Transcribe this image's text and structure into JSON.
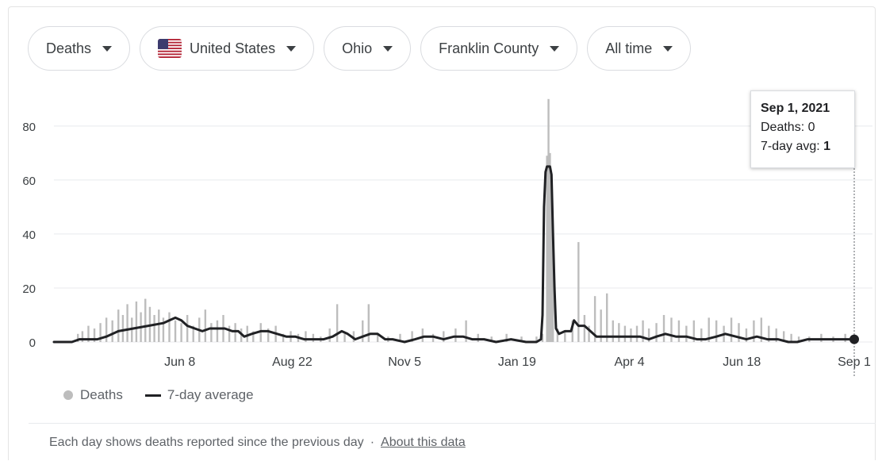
{
  "filters": [
    {
      "label": "Deaths",
      "flag": false
    },
    {
      "label": "United States",
      "flag": true
    },
    {
      "label": "Ohio",
      "flag": false
    },
    {
      "label": "Franklin County",
      "flag": false
    },
    {
      "label": "All time",
      "flag": false
    }
  ],
  "tooltip": {
    "date": "Sep 1, 2021",
    "deaths": "Deaths: 0",
    "avg_prefix": "7-day avg: ",
    "avg_value": "1"
  },
  "legend": {
    "bars": "Deaths",
    "line": "7-day average"
  },
  "footer": {
    "note": "Each day shows deaths reported since the previous day",
    "separator": "·",
    "link": "About this data"
  },
  "colors": {
    "bars": "#bdbdbd",
    "line": "#202124",
    "grid": "#e8eaed",
    "axis_text": "#3c4043",
    "flag_red": "#b22234",
    "flag_blue": "#3c3b6e"
  },
  "chart_data": {
    "type": "bar",
    "ylim": [
      0,
      92
    ],
    "yticks": [
      0,
      20,
      40,
      60,
      80
    ],
    "xlim": [
      "2020-03-16",
      "2021-09-01"
    ],
    "xticks": [
      {
        "date": "2020-06-08",
        "label": "Jun 8"
      },
      {
        "date": "2020-08-22",
        "label": "Aug 22"
      },
      {
        "date": "2020-11-05",
        "label": "Nov 5"
      },
      {
        "date": "2021-01-19",
        "label": "Jan 19"
      },
      {
        "date": "2021-04-04",
        "label": "Apr 4"
      },
      {
        "date": "2021-06-18",
        "label": "Jun 18"
      },
      {
        "date": "2021-09-01",
        "label": "Sep 1"
      }
    ],
    "grid": true,
    "legend_position": "bottom-left",
    "highlight_date": "2021-09-01",
    "series": [
      {
        "name": "Deaths",
        "type": "bar",
        "points": [
          [
            "2020-04-01",
            3
          ],
          [
            "2020-04-04",
            4
          ],
          [
            "2020-04-08",
            6
          ],
          [
            "2020-04-12",
            5
          ],
          [
            "2020-04-16",
            7
          ],
          [
            "2020-04-20",
            9
          ],
          [
            "2020-04-24",
            8
          ],
          [
            "2020-04-28",
            12
          ],
          [
            "2020-05-01",
            10
          ],
          [
            "2020-05-04",
            14
          ],
          [
            "2020-05-07",
            9
          ],
          [
            "2020-05-10",
            15
          ],
          [
            "2020-05-13",
            11
          ],
          [
            "2020-05-16",
            16
          ],
          [
            "2020-05-19",
            13
          ],
          [
            "2020-05-22",
            10
          ],
          [
            "2020-05-25",
            12
          ],
          [
            "2020-05-28",
            9
          ],
          [
            "2020-06-01",
            11
          ],
          [
            "2020-06-05",
            8
          ],
          [
            "2020-06-09",
            7
          ],
          [
            "2020-06-13",
            10
          ],
          [
            "2020-06-17",
            6
          ],
          [
            "2020-06-21",
            9
          ],
          [
            "2020-06-25",
            12
          ],
          [
            "2020-06-29",
            7
          ],
          [
            "2020-07-03",
            8
          ],
          [
            "2020-07-07",
            10
          ],
          [
            "2020-07-11",
            6
          ],
          [
            "2020-07-15",
            7
          ],
          [
            "2020-07-19",
            5
          ],
          [
            "2020-07-23",
            6
          ],
          [
            "2020-07-27",
            4
          ],
          [
            "2020-08-01",
            7
          ],
          [
            "2020-08-06",
            5
          ],
          [
            "2020-08-11",
            6
          ],
          [
            "2020-08-16",
            3
          ],
          [
            "2020-08-21",
            4
          ],
          [
            "2020-08-26",
            3
          ],
          [
            "2020-08-31",
            4
          ],
          [
            "2020-09-05",
            3
          ],
          [
            "2020-09-10",
            2
          ],
          [
            "2020-09-16",
            5
          ],
          [
            "2020-09-21",
            14
          ],
          [
            "2020-09-26",
            3
          ],
          [
            "2020-10-02",
            4
          ],
          [
            "2020-10-08",
            8
          ],
          [
            "2020-10-12",
            14
          ],
          [
            "2020-10-18",
            3
          ],
          [
            "2020-10-25",
            2
          ],
          [
            "2020-11-02",
            3
          ],
          [
            "2020-11-10",
            4
          ],
          [
            "2020-11-17",
            5
          ],
          [
            "2020-11-24",
            3
          ],
          [
            "2020-12-01",
            4
          ],
          [
            "2020-12-09",
            5
          ],
          [
            "2020-12-16",
            8
          ],
          [
            "2020-12-24",
            3
          ],
          [
            "2021-01-02",
            2
          ],
          [
            "2021-01-12",
            3
          ],
          [
            "2021-01-22",
            2
          ],
          [
            "2021-02-01",
            2
          ],
          [
            "2021-02-05",
            3
          ],
          [
            "2021-02-08",
            69
          ],
          [
            "2021-02-09",
            90
          ],
          [
            "2021-02-10",
            70
          ],
          [
            "2021-02-11",
            60
          ],
          [
            "2021-02-12",
            35
          ],
          [
            "2021-02-15",
            5
          ],
          [
            "2021-02-20",
            4
          ],
          [
            "2021-02-25",
            8
          ],
          [
            "2021-03-01",
            37
          ],
          [
            "2021-03-05",
            10
          ],
          [
            "2021-03-08",
            6
          ],
          [
            "2021-03-12",
            17
          ],
          [
            "2021-03-16",
            12
          ],
          [
            "2021-03-20",
            18
          ],
          [
            "2021-03-24",
            8
          ],
          [
            "2021-03-28",
            7
          ],
          [
            "2021-04-01",
            6
          ],
          [
            "2021-04-05",
            5
          ],
          [
            "2021-04-09",
            6
          ],
          [
            "2021-04-13",
            8
          ],
          [
            "2021-04-17",
            5
          ],
          [
            "2021-04-22",
            7
          ],
          [
            "2021-04-27",
            10
          ],
          [
            "2021-05-02",
            9
          ],
          [
            "2021-05-07",
            8
          ],
          [
            "2021-05-12",
            6
          ],
          [
            "2021-05-17",
            8
          ],
          [
            "2021-05-22",
            5
          ],
          [
            "2021-05-27",
            9
          ],
          [
            "2021-06-01",
            8
          ],
          [
            "2021-06-06",
            6
          ],
          [
            "2021-06-11",
            9
          ],
          [
            "2021-06-16",
            7
          ],
          [
            "2021-06-21",
            5
          ],
          [
            "2021-06-26",
            8
          ],
          [
            "2021-07-01",
            9
          ],
          [
            "2021-07-06",
            6
          ],
          [
            "2021-07-11",
            5
          ],
          [
            "2021-07-16",
            4
          ],
          [
            "2021-07-21",
            3
          ],
          [
            "2021-07-26",
            2
          ],
          [
            "2021-08-02",
            2
          ],
          [
            "2021-08-10",
            3
          ],
          [
            "2021-08-18",
            2
          ],
          [
            "2021-08-26",
            3
          ],
          [
            "2021-09-01",
            0
          ]
        ]
      },
      {
        "name": "7-day average",
        "type": "line",
        "points": [
          [
            "2020-03-16",
            0
          ],
          [
            "2020-03-28",
            0
          ],
          [
            "2020-04-02",
            1
          ],
          [
            "2020-04-14",
            1
          ],
          [
            "2020-04-20",
            2
          ],
          [
            "2020-04-28",
            4
          ],
          [
            "2020-05-08",
            5
          ],
          [
            "2020-05-18",
            6
          ],
          [
            "2020-05-28",
            7
          ],
          [
            "2020-06-01",
            8
          ],
          [
            "2020-06-05",
            9
          ],
          [
            "2020-06-09",
            8
          ],
          [
            "2020-06-13",
            6
          ],
          [
            "2020-06-18",
            5
          ],
          [
            "2020-06-23",
            4
          ],
          [
            "2020-06-28",
            5
          ],
          [
            "2020-07-03",
            5
          ],
          [
            "2020-07-08",
            5
          ],
          [
            "2020-07-13",
            4
          ],
          [
            "2020-07-17",
            4
          ],
          [
            "2020-07-21",
            2
          ],
          [
            "2020-07-26",
            3
          ],
          [
            "2020-08-01",
            4
          ],
          [
            "2020-08-06",
            4
          ],
          [
            "2020-08-12",
            3
          ],
          [
            "2020-08-18",
            2
          ],
          [
            "2020-08-24",
            2
          ],
          [
            "2020-08-30",
            1
          ],
          [
            "2020-09-05",
            1
          ],
          [
            "2020-09-12",
            1
          ],
          [
            "2020-09-18",
            2
          ],
          [
            "2020-09-24",
            4
          ],
          [
            "2020-09-28",
            3
          ],
          [
            "2020-10-03",
            1
          ],
          [
            "2020-10-08",
            2
          ],
          [
            "2020-10-13",
            3
          ],
          [
            "2020-10-18",
            3
          ],
          [
            "2020-10-23",
            1
          ],
          [
            "2020-10-28",
            1
          ],
          [
            "2020-11-05",
            0
          ],
          [
            "2020-11-12",
            1
          ],
          [
            "2020-11-18",
            2
          ],
          [
            "2020-11-24",
            2
          ],
          [
            "2020-12-01",
            1
          ],
          [
            "2020-12-08",
            2
          ],
          [
            "2020-12-14",
            2
          ],
          [
            "2020-12-20",
            1
          ],
          [
            "2020-12-28",
            1
          ],
          [
            "2021-01-05",
            0
          ],
          [
            "2021-01-15",
            1
          ],
          [
            "2021-01-25",
            0
          ],
          [
            "2021-02-01",
            0
          ],
          [
            "2021-02-04",
            1
          ],
          [
            "2021-02-05",
            10
          ],
          [
            "2021-02-06",
            50
          ],
          [
            "2021-02-07",
            63
          ],
          [
            "2021-02-08",
            65
          ],
          [
            "2021-02-10",
            65
          ],
          [
            "2021-02-11",
            62
          ],
          [
            "2021-02-12",
            40
          ],
          [
            "2021-02-13",
            20
          ],
          [
            "2021-02-14",
            5
          ],
          [
            "2021-02-16",
            3
          ],
          [
            "2021-02-20",
            4
          ],
          [
            "2021-02-24",
            4
          ],
          [
            "2021-02-26",
            8
          ],
          [
            "2021-03-01",
            6
          ],
          [
            "2021-03-05",
            6
          ],
          [
            "2021-03-09",
            4
          ],
          [
            "2021-03-13",
            2
          ],
          [
            "2021-03-20",
            2
          ],
          [
            "2021-03-28",
            2
          ],
          [
            "2021-04-04",
            2
          ],
          [
            "2021-04-11",
            2
          ],
          [
            "2021-04-17",
            1
          ],
          [
            "2021-04-22",
            2
          ],
          [
            "2021-04-28",
            3
          ],
          [
            "2021-05-05",
            2
          ],
          [
            "2021-05-12",
            2
          ],
          [
            "2021-05-19",
            1
          ],
          [
            "2021-05-25",
            1
          ],
          [
            "2021-06-01",
            2
          ],
          [
            "2021-06-07",
            3
          ],
          [
            "2021-06-14",
            2
          ],
          [
            "2021-06-21",
            1
          ],
          [
            "2021-06-28",
            2
          ],
          [
            "2021-07-05",
            1
          ],
          [
            "2021-07-12",
            1
          ],
          [
            "2021-07-19",
            0
          ],
          [
            "2021-07-25",
            0
          ],
          [
            "2021-08-01",
            1
          ],
          [
            "2021-08-09",
            1
          ],
          [
            "2021-08-16",
            1
          ],
          [
            "2021-08-22",
            1
          ],
          [
            "2021-09-01",
            1
          ]
        ]
      }
    ]
  }
}
